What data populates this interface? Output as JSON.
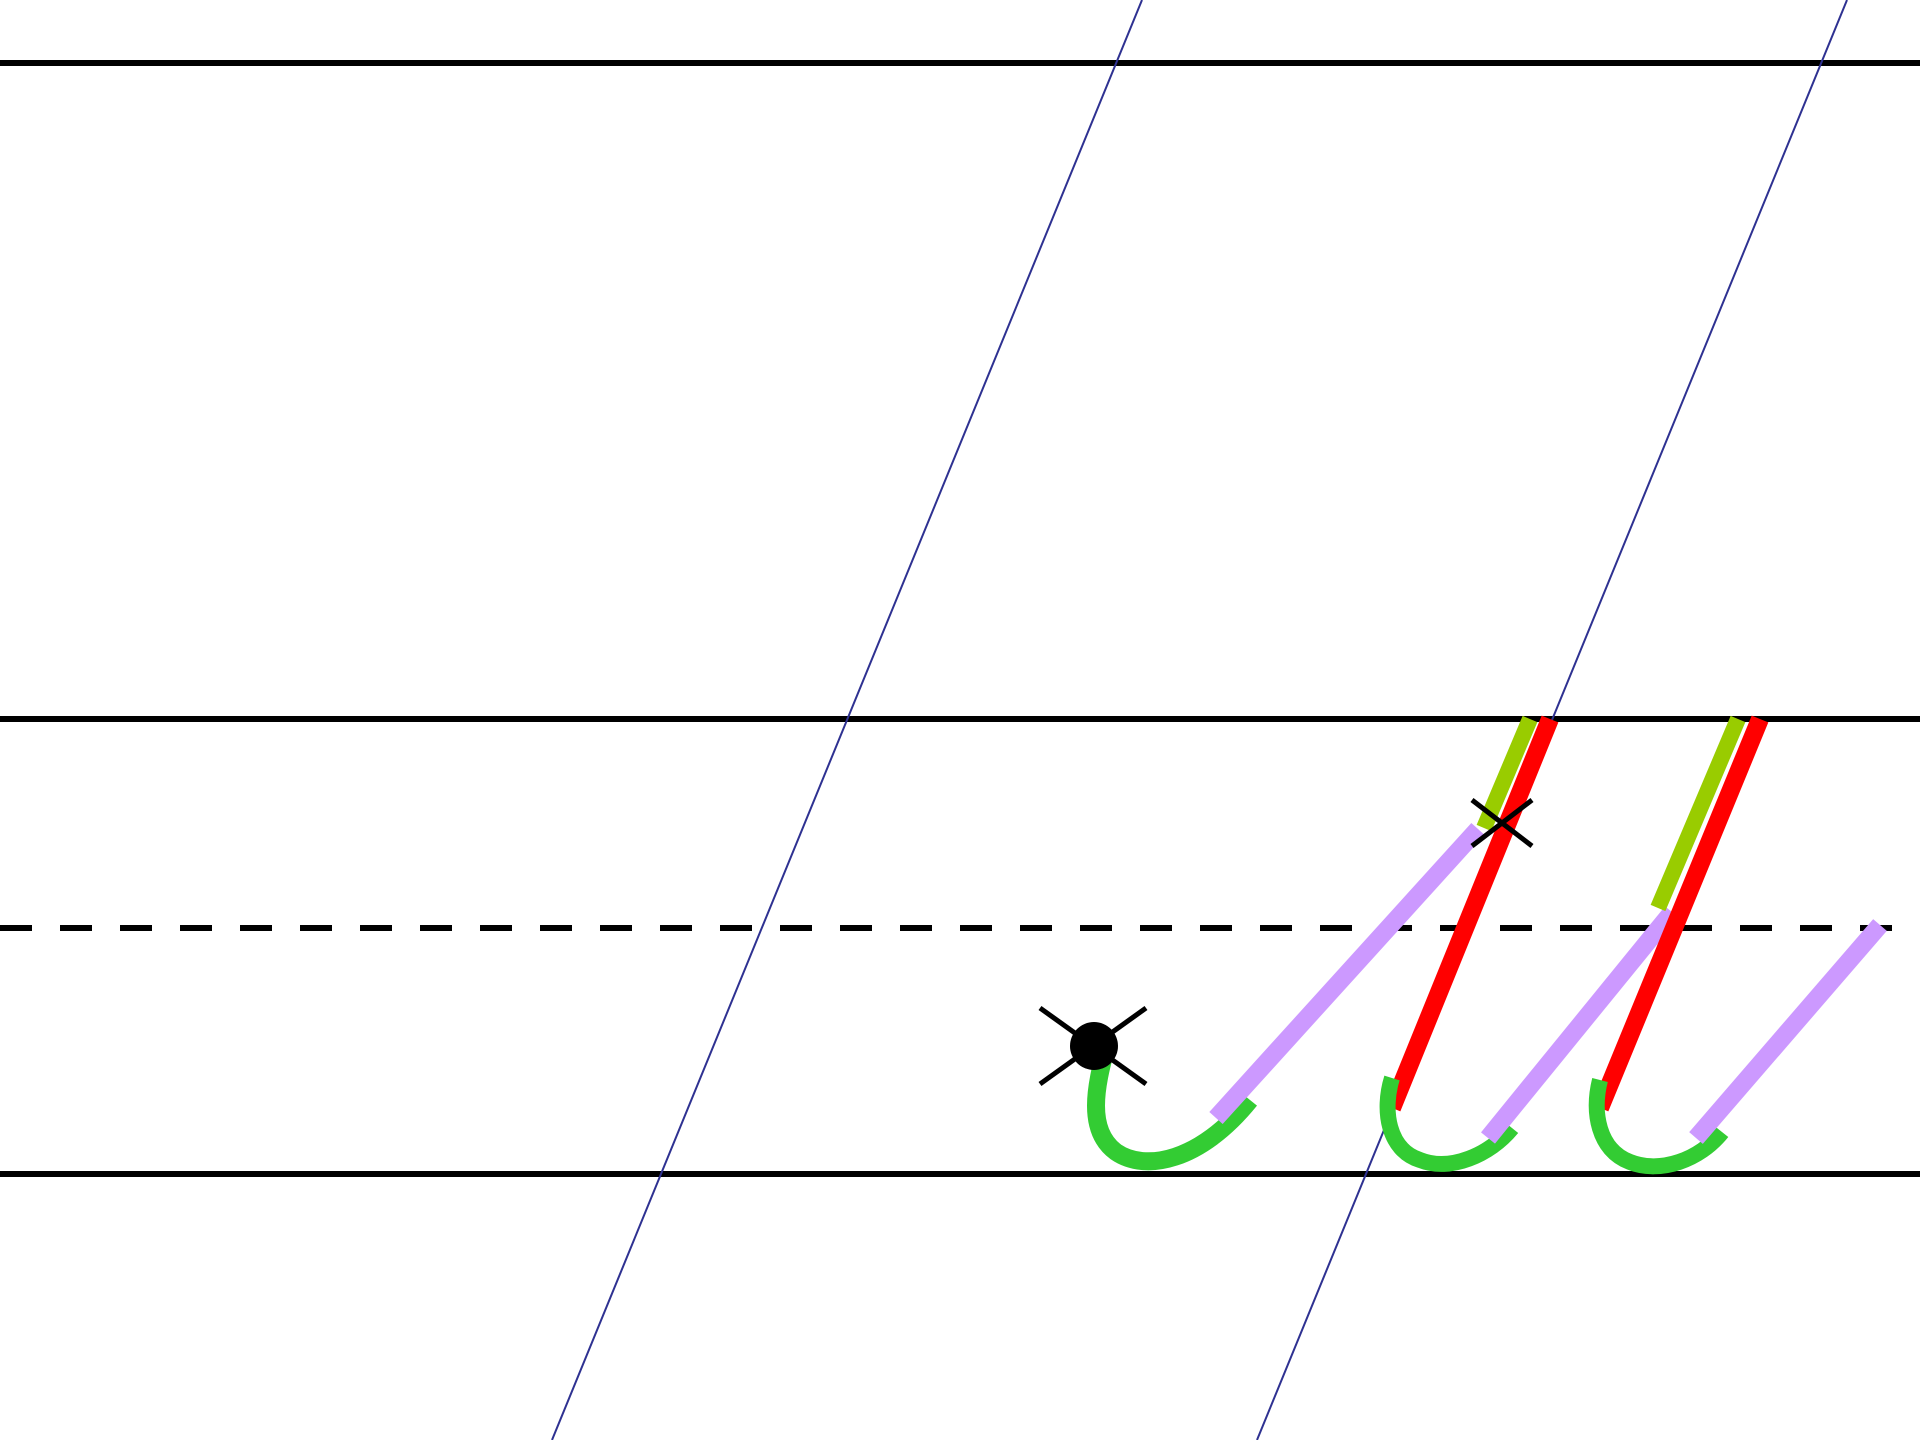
{
  "diagram": {
    "description_visible_text": "",
    "colors": {
      "background": "#ffffff",
      "ruling": "#000000",
      "slant_guide": "#2e3191",
      "entry_hook": "#33cc33",
      "connector": "#cc99ff",
      "downstroke": "#ff0000",
      "upstroke": "#99cc00",
      "marker": "#000000"
    },
    "icons": {
      "start_point": "start-dot-cross-icon",
      "join_point": "cross-mark-icon"
    },
    "stroke_sequence": [
      "entry-hook",
      "connector-upstroke",
      "downstroke",
      "upstroke",
      "connector"
    ]
  }
}
